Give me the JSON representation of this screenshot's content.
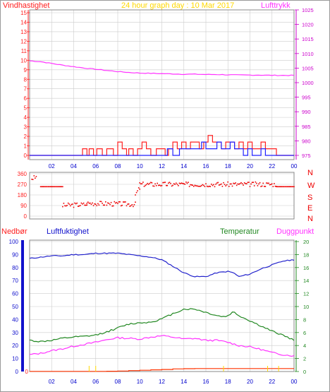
{
  "title": "24 hour graph day : 10 Mar 2017",
  "x_ticks": [
    "02",
    "04",
    "06",
    "08",
    "10",
    "12",
    "14",
    "16",
    "18",
    "20",
    "22",
    "00"
  ],
  "colors": {
    "wind": "#ff2020",
    "wind_gust": "#2020ff",
    "pressure": "#ff33ff",
    "wind_dir": "#ee0000",
    "humidity": "#2222cc",
    "temperature": "#228822",
    "dewpoint": "#ff33ff",
    "rain": "#ff3300",
    "rain_axis": "#ff0000",
    "humidity_axis": "#0000cc",
    "grid": "#cccccc",
    "frame": "#888888"
  },
  "panel1": {
    "left_label": "Vindhastighet",
    "right_label": "Lufttrykk",
    "left_ticks": [
      "0",
      "1",
      "2",
      "3",
      "4",
      "5",
      "6",
      "7",
      "8",
      "9",
      "10",
      "11",
      "12",
      "13",
      "14",
      "15"
    ],
    "right_ticks": [
      "975",
      "980",
      "985",
      "990",
      "995",
      "1000",
      "1005",
      "1010",
      "1015",
      "1020",
      "1025"
    ]
  },
  "panel2": {
    "left_ticks": [
      "0",
      "90",
      "180",
      "270",
      "360"
    ],
    "compass": [
      "N",
      "W",
      "S",
      "E",
      "N"
    ]
  },
  "panel3": {
    "rain_label": "Nedbør",
    "humidity_label": "Luftfuktighet",
    "temperature_label": "Temperatur",
    "dewpoint_label": "Duggpunkt",
    "left_ticks": [
      "0",
      "10",
      "20",
      "30",
      "40",
      "50",
      "60",
      "70",
      "80",
      "90",
      "100"
    ],
    "right_ticks": [
      "0",
      "2",
      "4",
      "6",
      "8",
      "10",
      "12",
      "14",
      "16",
      "18",
      "20"
    ]
  },
  "chart_data": [
    {
      "type": "line",
      "x_unit": "hour",
      "ylabel": "Vindhastighet",
      "ylim": [
        0,
        15
      ],
      "y2label": "Lufttrykk",
      "y2lim": [
        975,
        1025
      ],
      "series": [
        {
          "name": "Vindhastighet",
          "axis": "left",
          "x": [
            0,
            4.6,
            4.8,
            5.2,
            5.4,
            5.8,
            6.1,
            6.6,
            7.0,
            7.6,
            8.0,
            8.4,
            8.8,
            9.0,
            9.4,
            9.8,
            10.2,
            10.6,
            11.0,
            11.5,
            11.8,
            12.3,
            12.6,
            13.0,
            13.4,
            13.8,
            14.2,
            14.6,
            15.0,
            15.4,
            15.8,
            16.2,
            16.6,
            17.0,
            17.4,
            17.8,
            18.2,
            18.6,
            19.0,
            19.4,
            19.8,
            20.2,
            20.6,
            21.0,
            21.4,
            21.8,
            22.2,
            22.4,
            22.8,
            23.2,
            24
          ],
          "values": [
            0,
            0,
            0.7,
            0,
            0.7,
            0,
            0.7,
            0,
            0.7,
            0,
            1.4,
            0.7,
            0,
            0.7,
            0,
            0.7,
            1.4,
            0.7,
            0,
            0.7,
            0.7,
            0,
            0.7,
            1.4,
            0.7,
            1.4,
            0.7,
            1.4,
            1.4,
            0.7,
            1.4,
            2.1,
            1.4,
            1.4,
            0.7,
            1.4,
            1.4,
            0.7,
            1.4,
            0.7,
            1.4,
            0.7,
            0.7,
            1.4,
            0.7,
            0.7,
            0.7,
            0,
            0,
            0,
            0
          ]
        },
        {
          "name": "Vindkast",
          "axis": "left",
          "x": [
            0,
            12.4,
            12.5,
            13.0,
            13.2,
            13.6,
            14.0,
            15.2,
            15.6,
            16.0,
            16.5,
            17.0,
            17.4,
            17.8,
            18.2,
            18.6,
            19.0,
            19.4,
            19.8,
            20.2,
            20.6,
            21.0,
            21.4,
            24
          ],
          "values": [
            0,
            0,
            0.7,
            0,
            0,
            0.7,
            0.7,
            0.7,
            1.4,
            0.7,
            0.7,
            1.4,
            0.7,
            0.7,
            1.4,
            0.7,
            0.7,
            0,
            0.7,
            0,
            0,
            0.7,
            0,
            0
          ]
        },
        {
          "name": "Lufttrykk",
          "axis": "right",
          "x": [
            0,
            1,
            2,
            3,
            4,
            5,
            6,
            7,
            8,
            9,
            10,
            11,
            12,
            13,
            14,
            15,
            16,
            17,
            18,
            19,
            20,
            21,
            22,
            23,
            24
          ],
          "values": [
            1007.5,
            1007.2,
            1006.6,
            1006.0,
            1005.5,
            1005.0,
            1004.6,
            1004.2,
            1003.8,
            1003.5,
            1003.3,
            1003.2,
            1003.1,
            1003.0,
            1002.9,
            1002.9,
            1002.8,
            1002.8,
            1002.7,
            1002.6,
            1002.6,
            1002.6,
            1002.5,
            1002.5,
            1002.5
          ]
        }
      ]
    },
    {
      "type": "scatter",
      "x_unit": "hour",
      "ylim": [
        0,
        360
      ],
      "series": [
        {
          "name": "Vindretning",
          "segments": [
            {
              "x": [
                0.2,
                0.6
              ],
              "values": [
                320,
                330
              ]
            },
            {
              "x": [
                1.0,
                3.0
              ],
              "values": [
                250,
                250
              ]
            },
            {
              "x": [
                3.0,
                5.2
              ],
              "values": [
                90,
                100
              ]
            },
            {
              "x": [
                5.2,
                9.6
              ],
              "values": [
                110,
                100
              ]
            },
            {
              "x": [
                9.6,
                10.0
              ],
              "values": [
                180,
                240
              ]
            },
            {
              "x": [
                10.0,
                22.4
              ],
              "values": [
                270,
                270
              ]
            },
            {
              "x": [
                22.4,
                24.0
              ],
              "values": [
                250,
                250
              ]
            }
          ]
        }
      ]
    },
    {
      "type": "line",
      "x_unit": "hour",
      "ylabel": "Nedbør / Luftfuktighet",
      "ylim": [
        0,
        100
      ],
      "y2label": "Temperatur / Duggpunkt",
      "y2lim": [
        0,
        20
      ],
      "series": [
        {
          "name": "Luftfuktighet",
          "axis": "left",
          "x": [
            0,
            1,
            2,
            3,
            4,
            5,
            6,
            7,
            8,
            9,
            10,
            11,
            12,
            13,
            14,
            15,
            16,
            17,
            18,
            18.5,
            19,
            20,
            21,
            22,
            23,
            24
          ],
          "values": [
            87,
            88,
            89,
            89,
            90,
            90,
            91,
            91,
            91,
            90,
            89,
            88,
            86,
            81,
            76,
            73,
            73,
            76,
            77,
            76,
            73,
            75,
            79,
            82,
            85,
            86
          ]
        },
        {
          "name": "Temperatur",
          "axis": "right",
          "x": [
            0,
            1,
            2,
            3,
            4,
            5,
            6,
            7,
            8,
            9,
            10,
            11,
            12,
            13,
            14,
            15,
            16,
            17,
            17.7,
            18,
            18.5,
            19,
            20,
            21,
            22,
            23,
            24
          ],
          "values": [
            4.8,
            4.6,
            4.8,
            5.1,
            5.3,
            5.4,
            5.6,
            6.1,
            6.7,
            7.3,
            7.5,
            7.6,
            8.1,
            8.9,
            9.6,
            9.6,
            9.1,
            8.6,
            8.4,
            8.6,
            9.2,
            8.6,
            7.8,
            7.0,
            6.2,
            5.6,
            4.8
          ]
        },
        {
          "name": "Duggpunkt",
          "axis": "right",
          "x": [
            0,
            1,
            2,
            3,
            4,
            5,
            6,
            7,
            8,
            9,
            10,
            11,
            12,
            13,
            14,
            15,
            16,
            17,
            18,
            19,
            20,
            21,
            22,
            23,
            24
          ],
          "values": [
            2.6,
            2.8,
            3.2,
            3.5,
            3.9,
            4.2,
            4.5,
            4.9,
            5.2,
            5.1,
            5.0,
            5.3,
            5.5,
            5.3,
            5.0,
            5.1,
            4.8,
            4.8,
            4.5,
            4.0,
            3.8,
            3.4,
            2.9,
            2.6,
            2.4
          ]
        },
        {
          "name": "Nedbør",
          "axis": "left",
          "x": [
            0,
            6,
            7,
            8,
            9,
            10,
            11,
            12,
            13,
            14,
            15,
            16,
            17,
            18,
            19,
            20,
            21,
            22,
            23,
            24
          ],
          "values": [
            0.1,
            0.1,
            0.2,
            0.4,
            0.7,
            1.0,
            1.3,
            1.6,
            2.0,
            2.2,
            2.3,
            2.3,
            2.3,
            2.3,
            2.3,
            2.3,
            2.3,
            2.3,
            2.3,
            2.3
          ]
        }
      ]
    }
  ]
}
